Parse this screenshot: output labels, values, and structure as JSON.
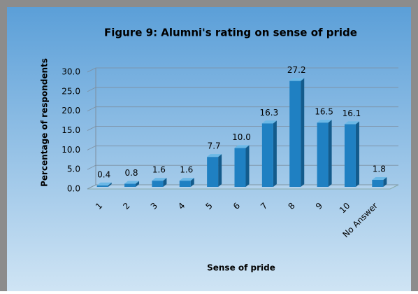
{
  "chart_data": {
    "type": "bar3d",
    "title": "Figure 9: Alumni's rating on sense of pride",
    "xlabel": "Sense of pride",
    "ylabel": "Percentage of respondents",
    "categories": [
      "1",
      "2",
      "3",
      "4",
      "5",
      "6",
      "7",
      "8",
      "9",
      "10",
      "No Answer"
    ],
    "values": [
      0.4,
      0.8,
      1.6,
      1.6,
      7.7,
      10.0,
      16.3,
      27.2,
      16.5,
      16.1,
      1.8
    ],
    "value_labels": [
      "0.4",
      "0.8",
      "1.6",
      "1.6",
      "7.7",
      "10.0",
      "16.3",
      "27.2",
      "16.5",
      "16.1",
      "1.8"
    ],
    "color": "#1f80c2",
    "ylim": [
      0,
      30
    ],
    "yticks": [
      {
        "value": 0,
        "label": "0.0"
      },
      {
        "value": 5,
        "label": "5.0"
      },
      {
        "value": 10,
        "label": "10.0"
      },
      {
        "value": 15,
        "label": "15.0"
      },
      {
        "value": 20,
        "label": "20.0"
      },
      {
        "value": 25,
        "label": "25.0"
      },
      {
        "value": 30,
        "label": "30.0"
      }
    ],
    "grid": true
  }
}
